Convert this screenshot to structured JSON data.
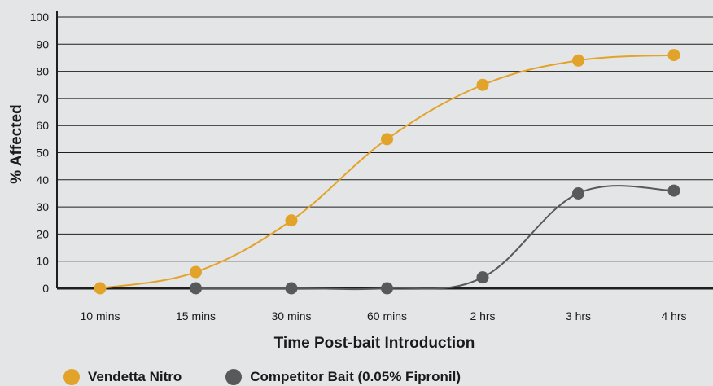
{
  "chart_data": {
    "type": "line",
    "categories": [
      "10 mins",
      "15 mins",
      "30 mins",
      "60 mins",
      "2 hrs",
      "3 hrs",
      "4 hrs"
    ],
    "series": [
      {
        "name": "Vendetta Nitro",
        "color": "#e2a32a",
        "values": [
          0,
          6,
          25,
          55,
          75,
          84,
          86
        ]
      },
      {
        "name": "Competitor Bait (0.05% Fipronil)",
        "color": "#58595b",
        "values": [
          null,
          0,
          0,
          0,
          4,
          35,
          36
        ]
      }
    ],
    "title": "",
    "xlabel": "Time Post-bait Introduction",
    "ylabel": "% Affected",
    "ylim": [
      0,
      100
    ],
    "yticks": [
      0,
      10,
      20,
      30,
      40,
      50,
      60,
      70,
      80,
      90,
      100
    ],
    "grid": true,
    "legend_position": "bottom-left"
  }
}
